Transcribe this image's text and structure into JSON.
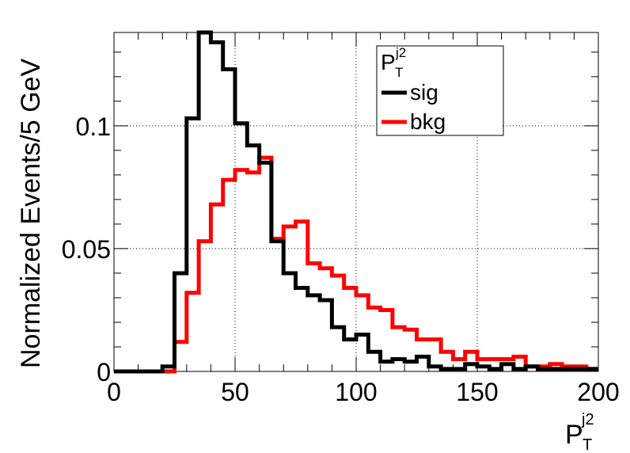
{
  "chart_data": {
    "type": "line",
    "title": "",
    "xlabel": {
      "main": "P",
      "sub": "T",
      "sup": "j2"
    },
    "ylabel": "Normalized Events/5 GeV",
    "xlim": [
      0,
      200
    ],
    "ylim": [
      0,
      0.138
    ],
    "grid": true,
    "legend_position": "top-right",
    "x_ticks": [
      {
        "value": 0,
        "label": "0"
      },
      {
        "value": 50,
        "label": "50"
      },
      {
        "value": 100,
        "label": "100"
      },
      {
        "value": 150,
        "label": "150"
      },
      {
        "value": 200,
        "label": "200"
      }
    ],
    "y_ticks": [
      {
        "value": 0,
        "label": "0"
      },
      {
        "value": 0.05,
        "label": "0.05"
      },
      {
        "value": 0.1,
        "label": "0.1"
      }
    ],
    "legend": {
      "title": {
        "main": "P",
        "sub": "T",
        "sup": "j2"
      },
      "entries": [
        {
          "label": "sig",
          "color": "#000000"
        },
        {
          "label": "bkg",
          "color": "#ff0000"
        }
      ]
    },
    "bin_edges": [
      0,
      5,
      10,
      15,
      20,
      25,
      30,
      35,
      40,
      45,
      50,
      55,
      60,
      65,
      70,
      75,
      80,
      85,
      90,
      95,
      100,
      105,
      110,
      115,
      120,
      125,
      130,
      135,
      140,
      145,
      150,
      155,
      160,
      165,
      170,
      175,
      180,
      185,
      190,
      195,
      200
    ],
    "series": [
      {
        "name": "sig",
        "color": "#000000",
        "values": [
          0,
          0,
          0,
          0,
          0.002,
          0.04,
          0.103,
          0.138,
          0.134,
          0.123,
          0.101,
          0.092,
          0.085,
          0.053,
          0.04,
          0.034,
          0.031,
          0.029,
          0.018,
          0.013,
          0.015,
          0.008,
          0.004,
          0.005,
          0.004,
          0.006,
          0.002,
          0.001,
          0.001,
          0.003,
          0.002,
          0.001,
          0.003,
          0.001,
          0.002,
          0.001,
          0.001,
          0.001,
          0.001,
          0.001
        ]
      },
      {
        "name": "bkg",
        "color": "#ff0000",
        "values": [
          0,
          0,
          0,
          0,
          0,
          0.012,
          0.032,
          0.053,
          0.068,
          0.078,
          0.082,
          0.081,
          0.087,
          0.054,
          0.059,
          0.061,
          0.044,
          0.042,
          0.039,
          0.034,
          0.031,
          0.026,
          0.025,
          0.018,
          0.017,
          0.013,
          0.013,
          0.008,
          0.005,
          0.008,
          0.005,
          0.005,
          0.005,
          0.006,
          0.002,
          0.002,
          0.003,
          0.002,
          0.002,
          0.001
        ]
      }
    ]
  }
}
